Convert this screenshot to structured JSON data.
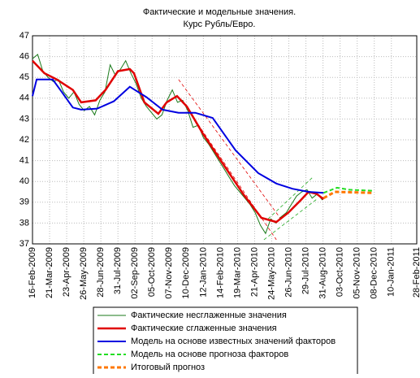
{
  "chart_data": {
    "type": "line",
    "title": "Фактические и модельные значения.",
    "subtitle": "Курс Рубль/Евро.",
    "xlim": [
      0,
      742
    ],
    "ylim": [
      37,
      47
    ],
    "yticks": [
      37,
      38,
      39,
      40,
      41,
      42,
      43,
      44,
      45,
      46,
      47
    ],
    "xticks": [
      {
        "value": 0,
        "label": "16-Feb-2009"
      },
      {
        "value": 33,
        "label": "21-Mar-2009"
      },
      {
        "value": 66,
        "label": "23-Apr-2009"
      },
      {
        "value": 99,
        "label": "26-May-2009"
      },
      {
        "value": 132,
        "label": "28-Jun-2009"
      },
      {
        "value": 165,
        "label": "31-Jul-2009"
      },
      {
        "value": 198,
        "label": "02-Sep-2009"
      },
      {
        "value": 231,
        "label": "05-Oct-2009"
      },
      {
        "value": 264,
        "label": "07-Nov-2009"
      },
      {
        "value": 297,
        "label": "10-Dec-2009"
      },
      {
        "value": 330,
        "label": "12-Jan-2010"
      },
      {
        "value": 363,
        "label": "14-Feb-2010"
      },
      {
        "value": 396,
        "label": "19-Mar-2010"
      },
      {
        "value": 429,
        "label": "21-Apr-2010"
      },
      {
        "value": 462,
        "label": "24-May-2010"
      },
      {
        "value": 495,
        "label": "26-Jun-2010"
      },
      {
        "value": 528,
        "label": "29-Jul-2010"
      },
      {
        "value": 561,
        "label": "31-Aug-2010"
      },
      {
        "value": 594,
        "label": "03-Oct-2010"
      },
      {
        "value": 627,
        "label": "05-Nov-2010"
      },
      {
        "value": 660,
        "label": "08-Dec-2010"
      },
      {
        "value": 693,
        "label": "10-Jan-2011"
      },
      {
        "value": 742,
        "label": "28-Feb-2011"
      }
    ],
    "grid": true,
    "legend": "bottom",
    "series": [
      {
        "name": "Фактические несглаженные значения",
        "color": "#1a7a1a",
        "width": 1,
        "dashed": false,
        "x": [
          0,
          10,
          20,
          30,
          40,
          50,
          60,
          70,
          80,
          90,
          100,
          110,
          120,
          130,
          140,
          150,
          160,
          170,
          180,
          190,
          200,
          210,
          220,
          230,
          240,
          250,
          260,
          270,
          280,
          290,
          300,
          310,
          320,
          330,
          340,
          350,
          360,
          370,
          380,
          390,
          400,
          410,
          420,
          430,
          440,
          450,
          460,
          470,
          480,
          490,
          500,
          510,
          520,
          530,
          540,
          550,
          560
        ],
        "values": [
          45.9,
          46.1,
          45.3,
          45.0,
          44.8,
          44.9,
          44.3,
          44.0,
          44.3,
          43.7,
          43.4,
          43.6,
          43.2,
          43.9,
          44.3,
          45.6,
          45.1,
          45.4,
          45.8,
          45.2,
          44.7,
          44.0,
          43.6,
          43.3,
          43.0,
          43.2,
          43.9,
          44.4,
          43.8,
          43.9,
          43.4,
          42.6,
          42.7,
          42.1,
          41.8,
          41.4,
          41.0,
          40.6,
          40.2,
          39.8,
          39.5,
          39.2,
          38.9,
          38.5,
          37.9,
          37.5,
          38.2,
          38.0,
          38.3,
          38.5,
          38.9,
          39.3,
          39.5,
          39.6,
          39.2,
          39.4,
          39.1
        ]
      },
      {
        "name": "Фактические сглаженные значения",
        "color": "#e00000",
        "width": 2.5,
        "dashed": false,
        "x": [
          0,
          23,
          47,
          78,
          94,
          122,
          141,
          165,
          188,
          196,
          216,
          243,
          259,
          279,
          298,
          329,
          361,
          408,
          442,
          471,
          494,
          518,
          533,
          549,
          562
        ],
        "values": [
          45.8,
          45.2,
          44.9,
          44.4,
          43.8,
          43.9,
          44.4,
          45.3,
          45.4,
          45.2,
          43.8,
          43.25,
          43.8,
          44.1,
          43.6,
          42.3,
          41.1,
          39.35,
          38.25,
          38.05,
          38.5,
          39.1,
          39.5,
          39.4,
          39.15
        ]
      },
      {
        "name": "Модель на основе известных значений факторов",
        "color": "#0000e0",
        "width": 2,
        "dashed": false,
        "x": [
          0,
          8,
          39,
          55,
          78,
          94,
          125,
          157,
          188,
          220,
          251,
          282,
          314,
          348,
          392,
          436,
          471,
          502,
          533,
          562
        ],
        "values": [
          44.1,
          44.9,
          44.9,
          44.35,
          43.55,
          43.45,
          43.5,
          43.85,
          44.55,
          44.05,
          43.45,
          43.3,
          43.3,
          43.05,
          41.5,
          40.4,
          39.9,
          39.65,
          39.5,
          39.45
        ]
      },
      {
        "name": "Модель на основе прогноза факторов",
        "color": "#22dd22",
        "width": 2,
        "dashed": true,
        "x": [
          562,
          588,
          612,
          659
        ],
        "values": [
          39.45,
          39.7,
          39.6,
          39.55
        ]
      },
      {
        "name": "Итоговый прогноз",
        "color": "#ff7700",
        "width": 3,
        "dashed": true,
        "x": [
          562,
          584,
          659
        ],
        "values": [
          39.2,
          39.5,
          39.45
        ]
      }
    ],
    "lines": [
      {
        "color": "#e00000",
        "x": [
          282,
          478
        ],
        "values": [
          44.9,
          38.25
        ]
      },
      {
        "color": "#e00000",
        "x": [
          295,
          471
        ],
        "values": [
          43.65,
          37.2
        ]
      },
      {
        "color": "#22aa22",
        "x": [
          447,
          549
        ],
        "values": [
          37.2,
          39.15
        ]
      },
      {
        "color": "#22aa22",
        "x": [
          455,
          541
        ],
        "values": [
          38.2,
          40.2
        ]
      }
    ]
  }
}
